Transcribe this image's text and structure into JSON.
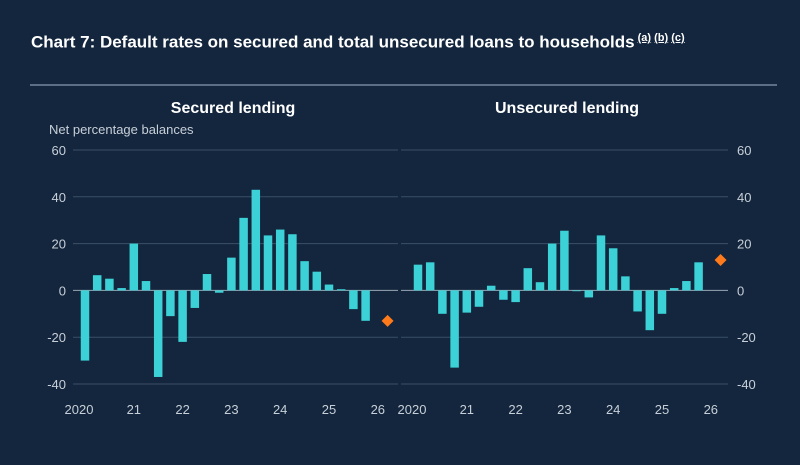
{
  "title": {
    "text": "Chart 7: Default rates on secured and total unsecured loans to households",
    "footnotes": [
      "(a)",
      "(b)",
      "(c)"
    ]
  },
  "colors": {
    "bar": "#3bd1d6",
    "projection": "#ff7a1a",
    "background": "#13263d"
  },
  "chart_data": [
    {
      "type": "bar",
      "title": "Secured lending",
      "ylabel": "Net percentage balances",
      "ylim": [
        -40,
        60
      ],
      "yticks": [
        "60",
        "40",
        "20",
        "0",
        "-20",
        "-40"
      ],
      "xticks": [
        "2020",
        "21",
        "22",
        "23",
        "24",
        "25",
        "26"
      ],
      "grid": true,
      "values": [
        -30,
        6.5,
        5,
        1,
        20,
        4,
        -37,
        -11,
        -22,
        -7.5,
        7,
        -1,
        14,
        31,
        43,
        23.5,
        26,
        24,
        12.5,
        8,
        2.5,
        0.5,
        -8,
        -13
      ],
      "projection": {
        "value": -13
      }
    },
    {
      "type": "bar",
      "title": "Unsecured lending",
      "ylim": [
        -40,
        60
      ],
      "yticks": [
        "60",
        "40",
        "20",
        "0",
        "-20",
        "-40"
      ],
      "xticks": [
        "2020",
        "21",
        "22",
        "23",
        "24",
        "25",
        "26"
      ],
      "grid": true,
      "values": [
        11,
        12,
        -10,
        -33,
        -9.5,
        -7,
        2,
        -4,
        -5,
        9.5,
        3.5,
        20,
        25.5,
        0,
        -3,
        23.5,
        18,
        6,
        -9,
        -17,
        -10,
        1,
        4,
        12
      ],
      "projection": {
        "value": 13
      }
    }
  ]
}
